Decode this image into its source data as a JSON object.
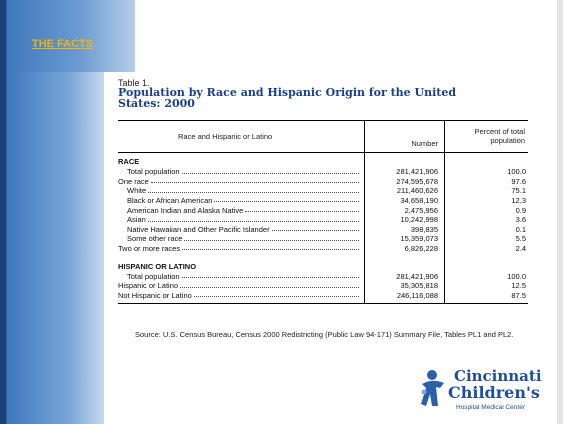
{
  "header": {
    "title": "THE FACTS"
  },
  "table": {
    "label": "Table 1.",
    "title": "Population by Race and Hispanic Origin for the United States:  2000",
    "columns": [
      "Race and Hispanic or Latino",
      "Number",
      "Percent of total population"
    ],
    "sections": [
      {
        "heading": "RACE",
        "rows": [
          [
            "Total population",
            "281,421,906",
            "100.0"
          ],
          [
            "One race",
            "274,595,678",
            "97.6"
          ],
          [
            "White",
            "211,460,626",
            "75.1"
          ],
          [
            "Black or African American",
            "34,658,190",
            "12.3"
          ],
          [
            "American Indian and Alaska Native",
            "2,475,956",
            "0.9"
          ],
          [
            "Asian",
            "10,242,998",
            "3.6"
          ],
          [
            "Native Hawaiian and Other Pacific Islander",
            "398,835",
            "0.1"
          ],
          [
            "Some other race",
            "15,359,073",
            "5.5"
          ],
          [
            "Two or more races",
            "6,826,228",
            "2.4"
          ]
        ]
      },
      {
        "heading": "HISPANIC OR LATINO",
        "rows": [
          [
            "Total population",
            "281,421,906",
            "100.0"
          ],
          [
            "Hispanic or Latino",
            "35,305,818",
            "12.5"
          ],
          [
            "Not Hispanic or Latino",
            "246,116,088",
            "87.5"
          ]
        ]
      }
    ],
    "source": "Source: U.S. Census Bureau, Census 2000 Redistricting (Public Law 94-171) Summary File, Tables PL1 and PL2."
  },
  "logo": {
    "line1": "Cincinnati",
    "line2": "Children's",
    "line3": "Hospital Medical Center"
  }
}
